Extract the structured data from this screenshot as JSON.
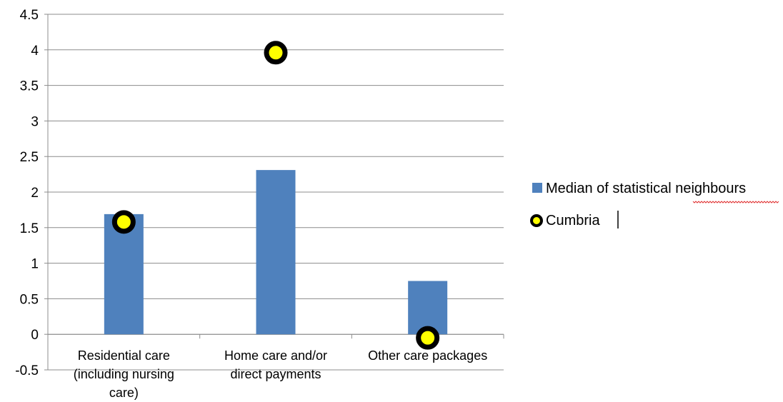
{
  "chart_data": {
    "type": "bar",
    "categories": [
      [
        "Residential care",
        "(including nursing",
        "care)"
      ],
      [
        "Home care and/or",
        "direct payments"
      ],
      [
        "Other care packages"
      ]
    ],
    "series": [
      {
        "name": "Median of statistical neighbours",
        "kind": "bar",
        "values": [
          1.69,
          2.31,
          0.75
        ]
      },
      {
        "name": "Cumbria",
        "kind": "marker",
        "values": [
          1.58,
          3.96,
          -0.05
        ]
      }
    ],
    "ylim": [
      -0.5,
      4.5
    ],
    "yticks": [
      "-0.5",
      "0",
      "0.5",
      "1",
      "1.5",
      "2",
      "2.5",
      "3",
      "3.5",
      "4",
      "4.5"
    ],
    "grid": true,
    "legend_position": "right",
    "colors": {
      "bar": "#4f81bd",
      "marker_fill": "#ffff00",
      "marker_edge": "#000000",
      "grid": "#8c8c8c"
    }
  }
}
